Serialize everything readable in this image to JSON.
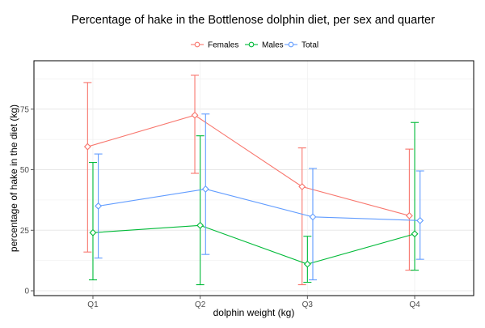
{
  "chart_data": {
    "type": "line",
    "title": "Percentage of hake in the Bottlenose dolphin diet, per sex and quarter",
    "xlabel": "dolphin weight (kg)",
    "ylabel": "percentage of hake in the diet (kg)",
    "categories": [
      "Q1",
      "Q2",
      "Q3",
      "Q4"
    ],
    "yticks": [
      0,
      25,
      50,
      75
    ],
    "ylim": [
      -2,
      95
    ],
    "legend_position": "top",
    "grid": true,
    "series": [
      {
        "name": "Females",
        "color": "#F8766D",
        "offset": -0.05,
        "values": [
          59.5,
          72.5,
          43,
          31
        ],
        "lower": [
          16,
          48.5,
          2.5,
          8.5
        ],
        "upper": [
          86,
          89,
          59,
          58.5
        ]
      },
      {
        "name": "Males",
        "color": "#00BA38",
        "offset": 0,
        "values": [
          24,
          27,
          11,
          23.5
        ],
        "lower": [
          4.5,
          2.5,
          3.5,
          8.5
        ],
        "upper": [
          53,
          64,
          22.5,
          69.5
        ]
      },
      {
        "name": "Total",
        "color": "#619CFF",
        "offset": 0.05,
        "values": [
          35,
          42,
          30.5,
          29
        ],
        "lower": [
          13.5,
          15,
          4.5,
          13
        ],
        "upper": [
          56.5,
          73,
          50.5,
          49.5
        ]
      }
    ]
  }
}
